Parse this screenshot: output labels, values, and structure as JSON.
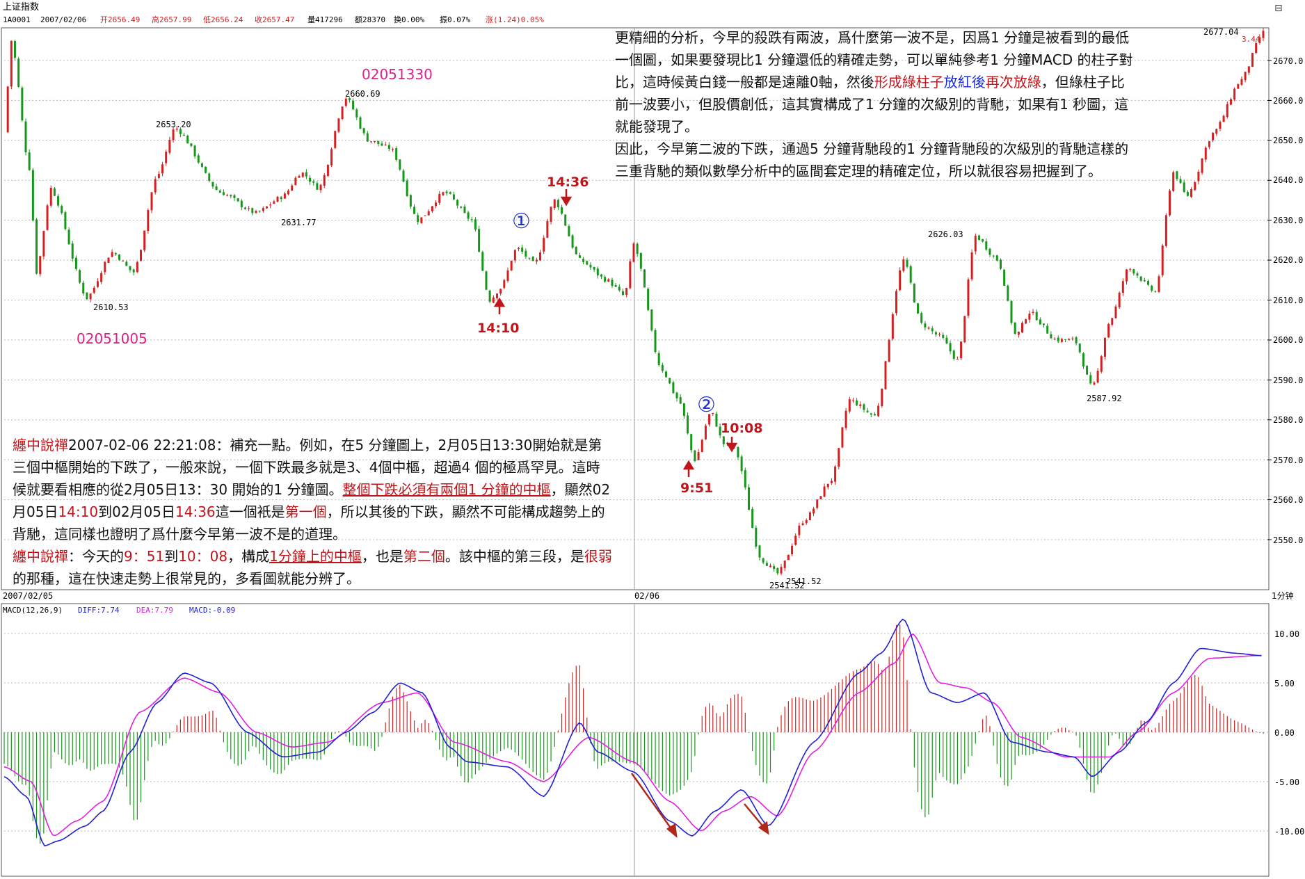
{
  "header": {
    "title": "上证指数",
    "code": "1A0001",
    "date": "2007/02/06",
    "open": "开2656.49",
    "high": "高2657.99",
    "low": "低2656.24",
    "close": "收2657.47",
    "volume": "量417296",
    "amount": "额28370",
    "turnover": "换0.00%",
    "amplitude": "振0.07%",
    "change": "涨(1.24)0.05%"
  },
  "price_axis": {
    "ticks": [
      "2670.0",
      "2660.0",
      "2650.0",
      "2640.0",
      "2630.0",
      "2620.0",
      "2610.0",
      "2600.0",
      "2590.0",
      "2580.0",
      "2570.0",
      "2560.0",
      "2550.0"
    ],
    "last_price": "2677.04",
    "last_change": "3.44"
  },
  "macd_axis": {
    "ticks": [
      "10.00",
      "5.00",
      "0.00",
      "-5.00",
      "-10.00"
    ]
  },
  "date_bar": {
    "day1": "2007/02/05",
    "day2": "02/06",
    "period": "1分钟"
  },
  "macd_header": {
    "name": "MACD(12,26,9)",
    "diff": "DIFF:7.74",
    "dea": "DEA:7.79",
    "macd": "MACD:-0.09"
  },
  "price_labels": {
    "p2610": "2610.53",
    "p2653": "2653.20",
    "p2631": "2631.77",
    "p2660": "2660.69",
    "p2626": "2626.03",
    "p2587": "2587.92",
    "p2541a": "2541.52",
    "p2541b": "2541.52",
    "p2677": "2677.04"
  },
  "marks": {
    "code1": "02051005",
    "code2": "02051330",
    "circle1": "①",
    "circle2": "②",
    "t1410": "14:10",
    "t1436": "14:36",
    "t951": "9:51",
    "t1008": "10:08"
  },
  "notes": {
    "top": {
      "line1": "更精細的分析，今早的殺跌有兩波，爲什麼第一波不是，因爲1 分鐘是被看到的最低",
      "line2": "一個圖，如果要發現比1 分鐘還低的精確走勢，可以單純參考1 分鐘MACD 的柱子對",
      "line3a": "比，這時候黃白錢一般都是遠離0軸，然後",
      "line3b": "形成綠柱子",
      "line3c": "放紅後",
      "line3d": "再次放綠",
      "line3e": "，但綠柱子比",
      "line4": "前一波要小，但股價創低，這其實構成了1 分鐘的次級別的背馳，如果有1 秒圖，這",
      "line5": "就能發現了。",
      "line6": "因此，今早第二波的下跌，通過5 分鐘背馳段的1 分鐘背馳段的次級別的背馳這樣的",
      "line7": "三重背馳的類似數學分析中的區間套定理的精確定位，所以就很容易把握到了。"
    },
    "bottom": {
      "a_name": "纏中說禪",
      "a_time": "2007-02-06 22:21:08：",
      "a_1": "補充一點。例如，在5 分鐘圖上，2月05日13:30開始就是第",
      "a_2": "三個中樞開始的下跌了，一般來說，一個下跌最多就是3、4個中樞，超過4 個的極爲罕見。這時",
      "a_3a": "候就要看相應的從2月05日13：30 開始的1 分鐘圖。",
      "a_3b": "整個下跌必須有兩個1 分鐘的中樞",
      "a_3c": "，顯然02",
      "a_4a": "月05日",
      "a_4b": "14:10",
      "a_4c": "到02月05日",
      "a_4d": "14:36",
      "a_4e": "這一個衹是",
      "a_4f": "第一個",
      "a_4g": "，所以其後的下跌，顯然不可能構成趨勢上的",
      "a_5": "背馳，這同樣也證明了爲什麼今早第一波不是的道理。",
      "b_name": "纏中說禪",
      "b_1": "：今天的",
      "b_2": "9：51",
      "b_3": "到",
      "b_4": "10：08",
      "b_5": "，構成",
      "b_6": "1分鐘上的中樞",
      "b_7": "，也是",
      "b_8": "第二個",
      "b_9": "。該中樞的第三段，是",
      "b_10": "很弱",
      "b_11": "的那種，這在快速走勢上很常見的，多看圖就能分辨了。"
    }
  },
  "colors": {
    "up": "#d42020",
    "down": "#16961a",
    "diff": "#2020d0",
    "dea": "#e020e0",
    "label_red": "#c0161b",
    "magenta": "#e0208a",
    "grid": "#b8b8b8"
  },
  "chart_data": [
    {
      "type": "candlestick",
      "title": "上证指数 1分钟",
      "ylim": [
        2541,
        2677.5
      ],
      "x": [
        "2007/02/05",
        "02/06"
      ],
      "anchors": [
        {
          "t": 0,
          "price": 2652
        },
        {
          "t": 8,
          "price": 2675
        },
        {
          "t": 28,
          "price": 2643
        },
        {
          "t": 36,
          "price": 2617
        },
        {
          "t": 52,
          "price": 2638
        },
        {
          "t": 92,
          "price": 2610.53
        },
        {
          "t": 120,
          "price": 2622
        },
        {
          "t": 144,
          "price": 2617
        },
        {
          "t": 170,
          "price": 2641
        },
        {
          "t": 190,
          "price": 2653.2
        },
        {
          "t": 240,
          "price": 2637
        },
        {
          "t": 280,
          "price": 2631.77
        },
        {
          "t": 310,
          "price": 2636
        },
        {
          "t": 330,
          "price": 2642
        },
        {
          "t": 350,
          "price": 2638
        },
        {
          "t": 380,
          "price": 2660.69
        },
        {
          "t": 405,
          "price": 2650
        },
        {
          "t": 430,
          "price": 2648
        },
        {
          "t": 460,
          "price": 2630
        },
        {
          "t": 490,
          "price": 2637
        },
        {
          "t": 520,
          "price": 2630
        },
        {
          "t": 540,
          "price": 2610
        },
        {
          "t": 552,
          "price": 2613
        },
        {
          "t": 570,
          "price": 2623
        },
        {
          "t": 590,
          "price": 2619
        },
        {
          "t": 612,
          "price": 2635
        },
        {
          "t": 640,
          "price": 2620
        },
        {
          "t": 670,
          "price": 2615
        },
        {
          "t": 690,
          "price": 2611
        },
        {
          "t": 700,
          "price": 2624
        },
        {
          "t": 730,
          "price": 2593
        },
        {
          "t": 750,
          "price": 2585
        },
        {
          "t": 768,
          "price": 2570
        },
        {
          "t": 786,
          "price": 2582
        },
        {
          "t": 800,
          "price": 2574
        },
        {
          "t": 812,
          "price": 2573
        },
        {
          "t": 842,
          "price": 2545
        },
        {
          "t": 860,
          "price": 2541.52
        },
        {
          "t": 890,
          "price": 2555
        },
        {
          "t": 920,
          "price": 2565
        },
        {
          "t": 940,
          "price": 2585
        },
        {
          "t": 968,
          "price": 2581
        },
        {
          "t": 1000,
          "price": 2620
        },
        {
          "t": 1020,
          "price": 2604
        },
        {
          "t": 1040,
          "price": 2601
        },
        {
          "t": 1060,
          "price": 2595
        },
        {
          "t": 1080,
          "price": 2626.03
        },
        {
          "t": 1105,
          "price": 2620
        },
        {
          "t": 1125,
          "price": 2601
        },
        {
          "t": 1140,
          "price": 2607
        },
        {
          "t": 1170,
          "price": 2600
        },
        {
          "t": 1190,
          "price": 2600
        },
        {
          "t": 1210,
          "price": 2587.92
        },
        {
          "t": 1230,
          "price": 2605
        },
        {
          "t": 1250,
          "price": 2618
        },
        {
          "t": 1280,
          "price": 2612
        },
        {
          "t": 1300,
          "price": 2642
        },
        {
          "t": 1315,
          "price": 2636
        },
        {
          "t": 1345,
          "price": 2652
        },
        {
          "t": 1375,
          "price": 2665
        },
        {
          "t": 1400,
          "price": 2677.04
        }
      ]
    },
    {
      "type": "macd",
      "ylim": [
        -13.5,
        12
      ],
      "series": [
        {
          "name": "DIFF",
          "anchors": [
            [
              0,
              -4.5
            ],
            [
              25,
              -6.5
            ],
            [
              45,
              -11.5
            ],
            [
              60,
              -11
            ],
            [
              90,
              -9.5
            ],
            [
              110,
              -8
            ],
            [
              140,
              -2
            ],
            [
              170,
              3
            ],
            [
              200,
              6
            ],
            [
              230,
              5
            ],
            [
              270,
              0
            ],
            [
              310,
              -2.5
            ],
            [
              350,
              -2
            ],
            [
              380,
              0
            ],
            [
              410,
              2
            ],
            [
              440,
              5
            ],
            [
              465,
              4
            ],
            [
              495,
              -1.5
            ],
            [
              515,
              -3
            ],
            [
              560,
              -3.5
            ],
            [
              600,
              -6.5
            ],
            [
              640,
              1
            ],
            [
              660,
              -2
            ],
            [
              700,
              -4
            ],
            [
              740,
              -9
            ],
            [
              765,
              -10.5
            ],
            [
              790,
              -8
            ],
            [
              820,
              -5.8
            ],
            [
              850,
              -9.5
            ],
            [
              900,
              -1
            ],
            [
              950,
              6
            ],
            [
              975,
              8
            ],
            [
              1000,
              11.5
            ],
            [
              1030,
              4
            ],
            [
              1060,
              3
            ],
            [
              1090,
              4
            ],
            [
              1120,
              -1
            ],
            [
              1160,
              -2
            ],
            [
              1190,
              -2.5
            ],
            [
              1210,
              -4.5
            ],
            [
              1240,
              -2
            ],
            [
              1270,
              1
            ],
            [
              1300,
              5
            ],
            [
              1330,
              8.5
            ],
            [
              1370,
              8
            ],
            [
              1400,
              7.74
            ]
          ]
        },
        {
          "name": "DEA",
          "anchors": [
            [
              0,
              -3.5
            ],
            [
              30,
              -5
            ],
            [
              55,
              -10.5
            ],
            [
              80,
              -9
            ],
            [
              110,
              -7
            ],
            [
              150,
              2
            ],
            [
              200,
              5.5
            ],
            [
              240,
              4
            ],
            [
              280,
              0
            ],
            [
              320,
              -1.5
            ],
            [
              360,
              -1
            ],
            [
              420,
              3
            ],
            [
              460,
              4
            ],
            [
              500,
              -1
            ],
            [
              560,
              -3
            ],
            [
              600,
              -5
            ],
            [
              650,
              -0.5
            ],
            [
              700,
              -3
            ],
            [
              740,
              -7
            ],
            [
              775,
              -10
            ],
            [
              800,
              -8
            ],
            [
              830,
              -6.5
            ],
            [
              860,
              -8.5
            ],
            [
              900,
              -2
            ],
            [
              950,
              4
            ],
            [
              990,
              7
            ],
            [
              1010,
              10
            ],
            [
              1040,
              5
            ],
            [
              1070,
              4.5
            ],
            [
              1100,
              3
            ],
            [
              1130,
              -0.5
            ],
            [
              1180,
              -2.5
            ],
            [
              1230,
              -2.5
            ],
            [
              1260,
              0
            ],
            [
              1300,
              4
            ],
            [
              1340,
              7.5
            ],
            [
              1400,
              7.79
            ]
          ]
        }
      ],
      "histogram": "bars equal 2*(DIFF-DEA); red above zero, green below"
    }
  ]
}
